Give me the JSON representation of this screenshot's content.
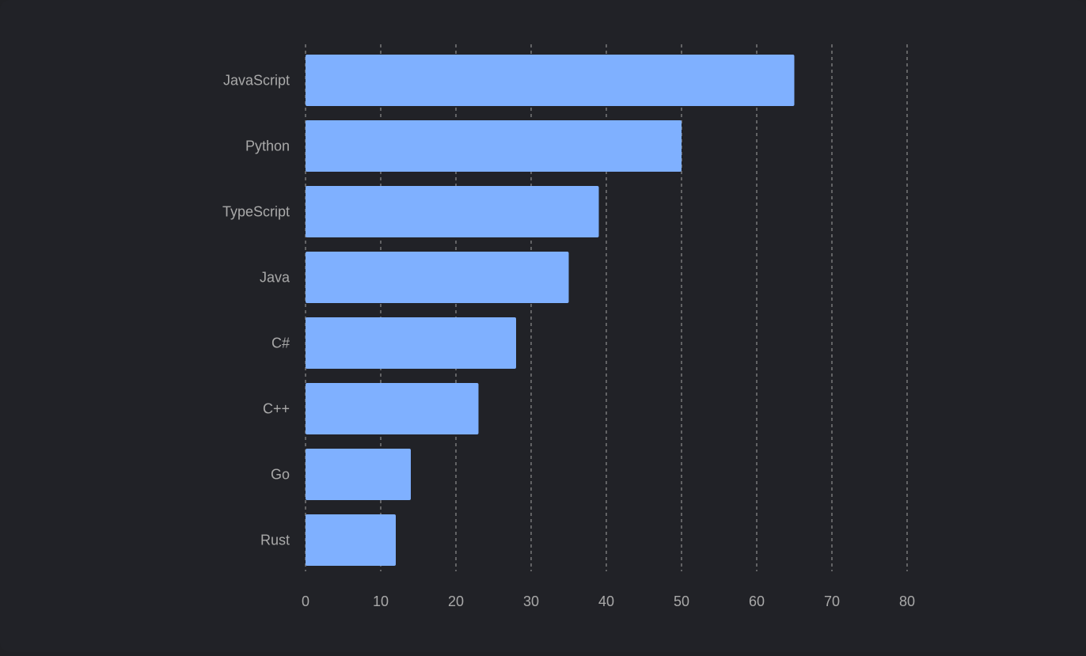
{
  "chart_data": {
    "type": "bar",
    "orientation": "horizontal",
    "categories": [
      "JavaScript",
      "Python",
      "TypeScript",
      "Java",
      "C#",
      "C++",
      "Go",
      "Rust"
    ],
    "values": [
      65,
      50,
      39,
      35,
      28,
      23,
      14,
      12
    ],
    "title": "",
    "xlabel": "",
    "ylabel": "",
    "xlim": [
      0,
      80
    ],
    "xticks": [
      "0",
      "10",
      "20",
      "30",
      "40",
      "50",
      "60",
      "70",
      "80"
    ],
    "grid": "vertical-dashed",
    "legend": "none"
  },
  "colors": {
    "background": "#212227",
    "bar": "#7fb0ff",
    "grid": "#8e8e8e",
    "label": "#a9a9a9"
  }
}
